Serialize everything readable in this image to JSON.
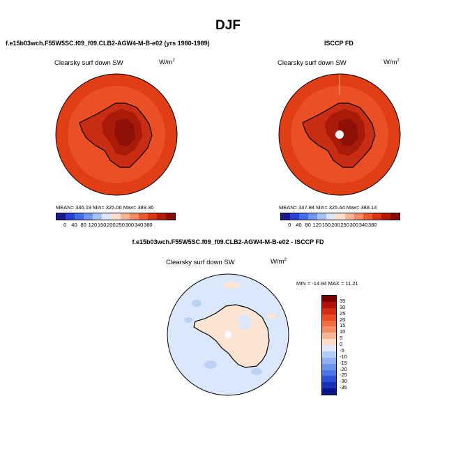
{
  "title": "DJF",
  "panels": [
    {
      "title": "f.e15b03wch.F55W5SC.f09_f09.CLB2-AGW4-M-B-e02 (yrs 1980-1989)",
      "variable": "Clearsky surf down SW",
      "units_base": "W/m",
      "units_exp": "2",
      "stats": "MEAN= 346.19   Min= 325.06   Max= 389.36"
    },
    {
      "title": "ISCCP FD",
      "variable": "Clearsky surf down SW",
      "units_base": "W/m",
      "units_exp": "2",
      "stats": "MEAN= 347.84   Min= 325.44   Max= 388.14"
    },
    {
      "title": "f.e15b03wch.F55W5SC.f09_f09.CLB2-AGW4-M-B-e02 - ISCCP FD",
      "variable": "Clearsky surf down SW",
      "units_base": "W/m",
      "units_exp": "2",
      "stats": "MIN = -14.94  MAX =  11.21"
    }
  ],
  "colorbar_abs": {
    "labels": [
      "0",
      "40",
      "80",
      "120",
      "150",
      "200",
      "250",
      "300",
      "340",
      "380"
    ],
    "colors": [
      "#1a1a8c",
      "#2a3fd6",
      "#3f6fe6",
      "#6f96f0",
      "#a9c2f6",
      "#dbe6fb",
      "#fde0cf",
      "#f9b797",
      "#f58c66",
      "#ee5a30",
      "#dc3410",
      "#b41b08",
      "#8a0a04"
    ]
  },
  "colorbar_diff": {
    "labels": [
      "35",
      "30",
      "25",
      "20",
      "15",
      "10",
      "5",
      "0",
      "-5",
      "-10",
      "-15",
      "-20",
      "-25",
      "-30",
      "-35"
    ],
    "colors": [
      "#7a0000",
      "#b01008",
      "#d42d14",
      "#e84c25",
      "#f06b42",
      "#f48c66",
      "#f8b497",
      "#fddcc8",
      "#dfe9fb",
      "#b4cbf6",
      "#8fb0f2",
      "#6a93ec",
      "#4a74e2",
      "#2d52d4",
      "#1831b6",
      "#0b168c"
    ]
  },
  "map_colors": {
    "ocean_abs": "#eb4f26",
    "ring_abs": "#e23e16",
    "land_mid": "#c82c12",
    "land_high": "#a91a08",
    "land_core": "#8e0f05",
    "diff_ocean": "#dbe7fb",
    "diff_pos": "#fde4d3",
    "diff_neg": "#bcd1f6"
  }
}
